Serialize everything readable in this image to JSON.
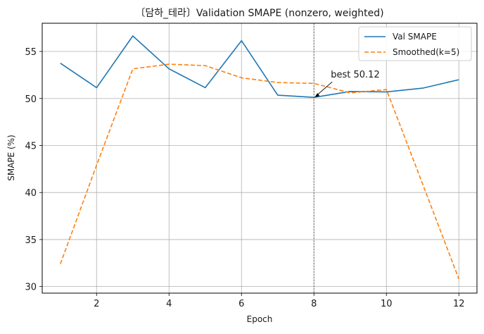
{
  "chart_data": {
    "type": "line",
    "title": "〔담하_테라〕Validation SMAPE (nonzero, weighted)",
    "xlabel": "Epoch",
    "ylabel": "SMAPE (%)",
    "x": [
      1,
      2,
      3,
      4,
      5,
      6,
      7,
      8,
      9,
      10,
      11,
      12
    ],
    "xlim": [
      0.5,
      12.5
    ],
    "ylim": [
      29.3,
      58.0
    ],
    "xticks": [
      2,
      4,
      6,
      8,
      10,
      12
    ],
    "yticks": [
      30,
      35,
      40,
      45,
      50,
      55
    ],
    "grid": true,
    "legend_position": "top-right",
    "series": [
      {
        "name": "Val SMAPE",
        "color": "#1f77b4",
        "style": "solid",
        "values": [
          53.75,
          51.15,
          56.65,
          53.15,
          51.15,
          56.15,
          50.35,
          50.12,
          50.75,
          50.7,
          51.1,
          52.0
        ]
      },
      {
        "name": "Smoothed(k=5)",
        "color": "#ff7f0e",
        "style": "dashed",
        "values": [
          32.4,
          42.9,
          53.15,
          53.65,
          53.5,
          52.2,
          51.7,
          51.6,
          50.6,
          50.95,
          40.9,
          30.8
        ]
      }
    ],
    "vline": {
      "x": 8,
      "color": "#808080",
      "style": "dotted"
    },
    "annotation": {
      "text": "best 50.12",
      "x": 8,
      "y": 50.12
    }
  }
}
